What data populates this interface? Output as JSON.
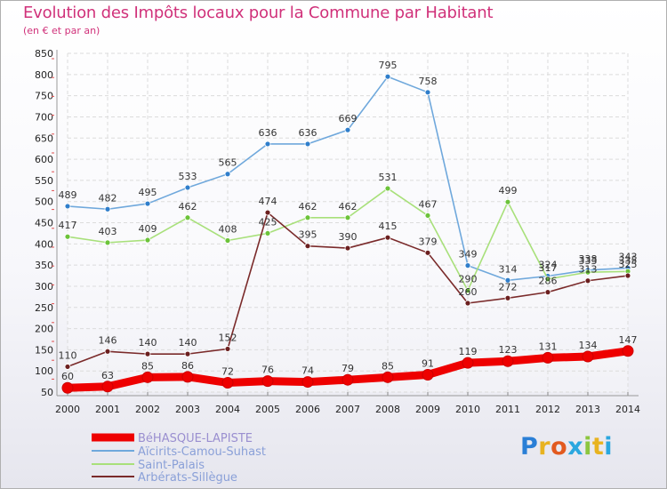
{
  "header": {
    "title": "Evolution des Impôts locaux pour la Commune par Habitant",
    "subtitle": "(en € et par an)"
  },
  "logo": {
    "text": "Proxiti",
    "letters": [
      {
        "ch": "P",
        "color": "#2a7fd6"
      },
      {
        "ch": "r",
        "color": "#e8b320"
      },
      {
        "ch": "o",
        "color": "#e25a1f"
      },
      {
        "ch": "x",
        "color": "#2aa7df"
      },
      {
        "ch": "i",
        "color": "#8cc63f"
      },
      {
        "ch": "t",
        "color": "#e8b320"
      },
      {
        "ch": "i",
        "color": "#2aa7df"
      }
    ]
  },
  "chart_data": {
    "type": "line",
    "title": "Evolution des Impôts locaux pour la Commune par Habitant",
    "subtitle": "(en € et par an)",
    "categories": [
      "2000",
      "2001",
      "2002",
      "2003",
      "2004",
      "2005",
      "2006",
      "2007",
      "2008",
      "2009",
      "2010",
      "2011",
      "2012",
      "2013",
      "2014"
    ],
    "ylim": [
      50,
      850
    ],
    "yticks": [
      50,
      100,
      150,
      200,
      250,
      300,
      350,
      400,
      450,
      500,
      550,
      600,
      650,
      700,
      750,
      800,
      850
    ],
    "grid": true,
    "legend_position": "bottom-left",
    "series": [
      {
        "name": "BéHASQUE-LAPISTE",
        "color": "#ee0000",
        "thick": true,
        "values": [
          60,
          63,
          85,
          86,
          72,
          76,
          74,
          79,
          85,
          91,
          119,
          123,
          131,
          134,
          147
        ],
        "labels": [
          "60",
          "63",
          "85",
          "86",
          "72",
          "76",
          "74",
          "79",
          "85",
          "91",
          "119",
          "123",
          "131",
          "134",
          "147"
        ]
      },
      {
        "name": "Aïcirits-Camou-Suhast",
        "color": "#6fa8dc",
        "marker": "#2f7ecb",
        "values": [
          489,
          482,
          495,
          533,
          565,
          636,
          636,
          669,
          795,
          758,
          349,
          314,
          324,
          338,
          343
        ],
        "labels": [
          "489",
          "482",
          "495",
          "533",
          "565",
          "636",
          "636",
          "669",
          "795",
          "758",
          "349",
          "314",
          "324",
          "338",
          "343"
        ]
      },
      {
        "name": "Saint-Palais",
        "color": "#a8e07a",
        "marker": "#6cc33a",
        "values": [
          417,
          403,
          409,
          462,
          408,
          425,
          462,
          462,
          531,
          467,
          290,
          499,
          317,
          333,
          335
        ],
        "labels": [
          "417",
          "403",
          "409",
          "462",
          "408",
          "425",
          "462",
          "462",
          "531",
          "467",
          "290",
          "499",
          "317",
          "333",
          "335"
        ]
      },
      {
        "name": "Arbérats-Sillègue",
        "color": "#7a2a2a",
        "marker": "#6b1f1f",
        "values": [
          110,
          146,
          140,
          140,
          152,
          474,
          395,
          390,
          415,
          379,
          260,
          272,
          286,
          313,
          325
        ],
        "labels": [
          "110",
          "146",
          "140",
          "140",
          "152",
          "474",
          "395",
          "390",
          "415",
          "379",
          "260",
          "272",
          "286",
          "313",
          "325"
        ]
      }
    ]
  }
}
